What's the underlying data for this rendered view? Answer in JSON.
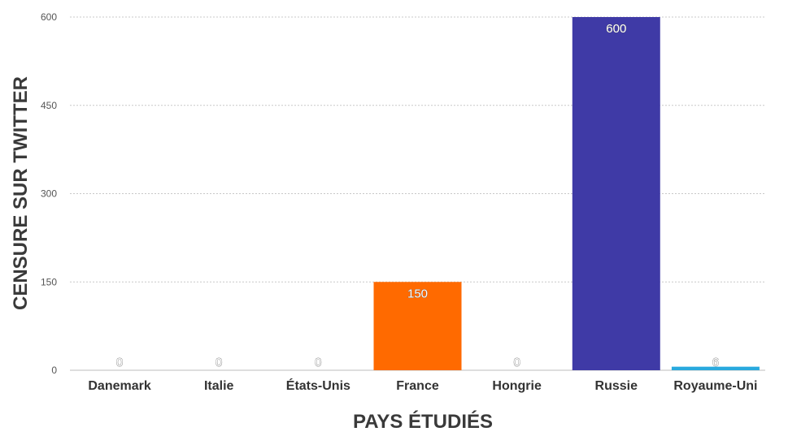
{
  "chart_data": {
    "type": "bar",
    "categories": [
      "Danemark",
      "Italie",
      "États-Unis",
      "France",
      "Hongrie",
      "Russie",
      "Royaume-Uni"
    ],
    "values": [
      0,
      0,
      0,
      150,
      0,
      600,
      6
    ],
    "data_labels": [
      "0",
      "0",
      "0",
      "150",
      "0",
      "600",
      "6"
    ],
    "bar_colors": [
      "#999999",
      "#999999",
      "#999999",
      "#FF6A00",
      "#999999",
      "#3F3AA6",
      "#29A9DE"
    ],
    "title": "",
    "xlabel": "PAYS ÉTUDIÉS",
    "ylabel": "CENSURE SUR TWITTER",
    "ylim": [
      0,
      600
    ],
    "yticks": [
      0,
      150,
      300,
      450,
      600
    ],
    "ytick_labels": [
      "0",
      "150",
      "300",
      "450",
      "600"
    ],
    "grid": true,
    "legend": "none"
  }
}
